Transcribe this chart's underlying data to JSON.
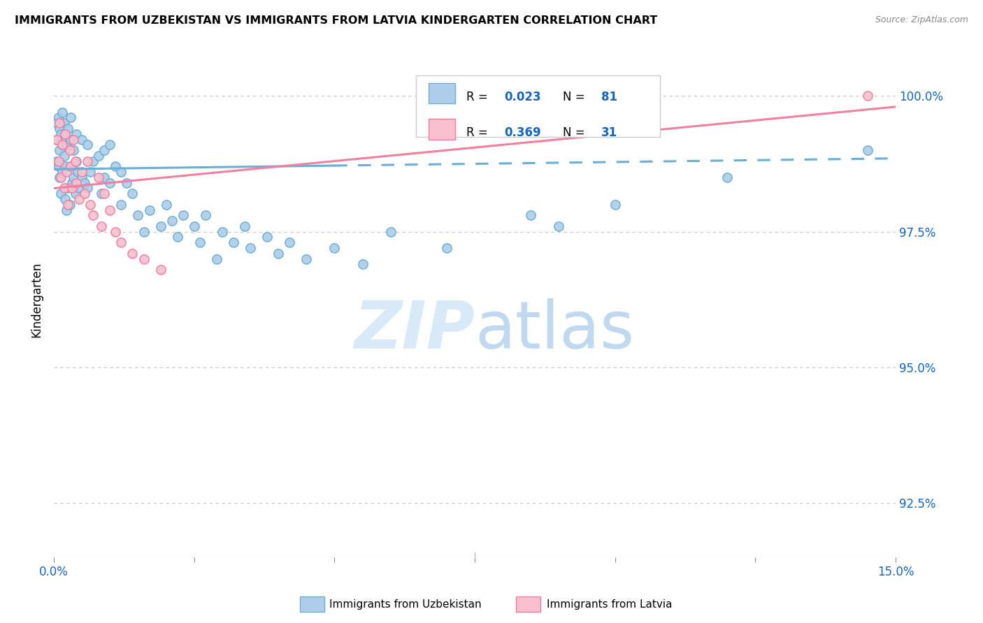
{
  "title": "IMMIGRANTS FROM UZBEKISTAN VS IMMIGRANTS FROM LATVIA KINDERGARTEN CORRELATION CHART",
  "source": "Source: ZipAtlas.com",
  "ylabel": "Kindergarten",
  "yticks": [
    92.5,
    95.0,
    97.5,
    100.0
  ],
  "ytick_labels": [
    "92.5%",
    "95.0%",
    "97.5%",
    "100.0%"
  ],
  "xmin": 0.0,
  "xmax": 15.0,
  "ymin": 91.5,
  "ymax": 101.0,
  "uzbekistan_color": "#6baed6",
  "uzbekistan_color_fill": "#aecde8",
  "latvia_color": "#f080a0",
  "latvia_color_fill": "#f8c0d0",
  "R_uzbekistan": 0.023,
  "N_uzbekistan": 81,
  "R_latvia": 0.369,
  "N_latvia": 31,
  "legend_R_color": "#1565c0",
  "watermark_zip": "ZIP",
  "watermark_atlas": "atlas",
  "uzbekistan_x": [
    0.05,
    0.05,
    0.05,
    0.08,
    0.08,
    0.1,
    0.1,
    0.1,
    0.12,
    0.12,
    0.15,
    0.15,
    0.15,
    0.18,
    0.18,
    0.2,
    0.2,
    0.2,
    0.22,
    0.22,
    0.25,
    0.25,
    0.28,
    0.3,
    0.3,
    0.3,
    0.32,
    0.35,
    0.35,
    0.38,
    0.4,
    0.4,
    0.42,
    0.45,
    0.5,
    0.5,
    0.55,
    0.6,
    0.6,
    0.65,
    0.7,
    0.8,
    0.85,
    0.9,
    0.9,
    1.0,
    1.0,
    1.1,
    1.2,
    1.2,
    1.3,
    1.4,
    1.5,
    1.6,
    1.7,
    1.9,
    2.0,
    2.1,
    2.2,
    2.3,
    2.5,
    2.6,
    2.7,
    2.9,
    3.0,
    3.2,
    3.4,
    3.5,
    3.8,
    4.0,
    4.2,
    4.5,
    5.0,
    5.5,
    6.0,
    7.0,
    8.5,
    9.0,
    10.0,
    12.0,
    14.5
  ],
  "uzbekistan_y": [
    99.5,
    99.2,
    98.8,
    99.6,
    98.7,
    99.4,
    99.0,
    98.5,
    99.3,
    98.2,
    99.7,
    99.1,
    98.6,
    99.5,
    98.9,
    99.3,
    98.7,
    98.1,
    99.1,
    97.9,
    99.4,
    98.3,
    98.0,
    99.6,
    99.2,
    98.7,
    98.4,
    99.0,
    98.5,
    98.2,
    99.3,
    98.8,
    98.6,
    98.3,
    99.2,
    98.5,
    98.4,
    99.1,
    98.3,
    98.6,
    98.8,
    98.9,
    98.2,
    99.0,
    98.5,
    99.1,
    98.4,
    98.7,
    98.6,
    98.0,
    98.4,
    98.2,
    97.8,
    97.5,
    97.9,
    97.6,
    98.0,
    97.7,
    97.4,
    97.8,
    97.6,
    97.3,
    97.8,
    97.0,
    97.5,
    97.3,
    97.6,
    97.2,
    97.4,
    97.1,
    97.3,
    97.0,
    97.2,
    96.9,
    97.5,
    97.2,
    97.8,
    97.6,
    98.0,
    98.5,
    99.0
  ],
  "latvia_x": [
    0.05,
    0.08,
    0.1,
    0.12,
    0.15,
    0.18,
    0.2,
    0.22,
    0.25,
    0.28,
    0.3,
    0.32,
    0.35,
    0.38,
    0.4,
    0.45,
    0.5,
    0.55,
    0.6,
    0.65,
    0.7,
    0.8,
    0.85,
    0.9,
    1.0,
    1.1,
    1.2,
    1.4,
    1.6,
    1.9,
    14.5
  ],
  "latvia_y": [
    99.2,
    98.8,
    99.5,
    98.5,
    99.1,
    98.3,
    99.3,
    98.6,
    98.0,
    99.0,
    98.7,
    98.3,
    99.2,
    98.8,
    98.4,
    98.1,
    98.6,
    98.2,
    98.8,
    98.0,
    97.8,
    98.5,
    97.6,
    98.2,
    97.9,
    97.5,
    97.3,
    97.1,
    97.0,
    96.8,
    100.0
  ],
  "uzb_trend_x0": 0.0,
  "uzb_trend_y0": 98.65,
  "uzb_trend_x1": 15.0,
  "uzb_trend_y1": 98.85,
  "uzb_solid_end": 5.0,
  "lat_trend_x0": 0.0,
  "lat_trend_y0": 98.3,
  "lat_trend_x1": 15.0,
  "lat_trend_y1": 99.8
}
